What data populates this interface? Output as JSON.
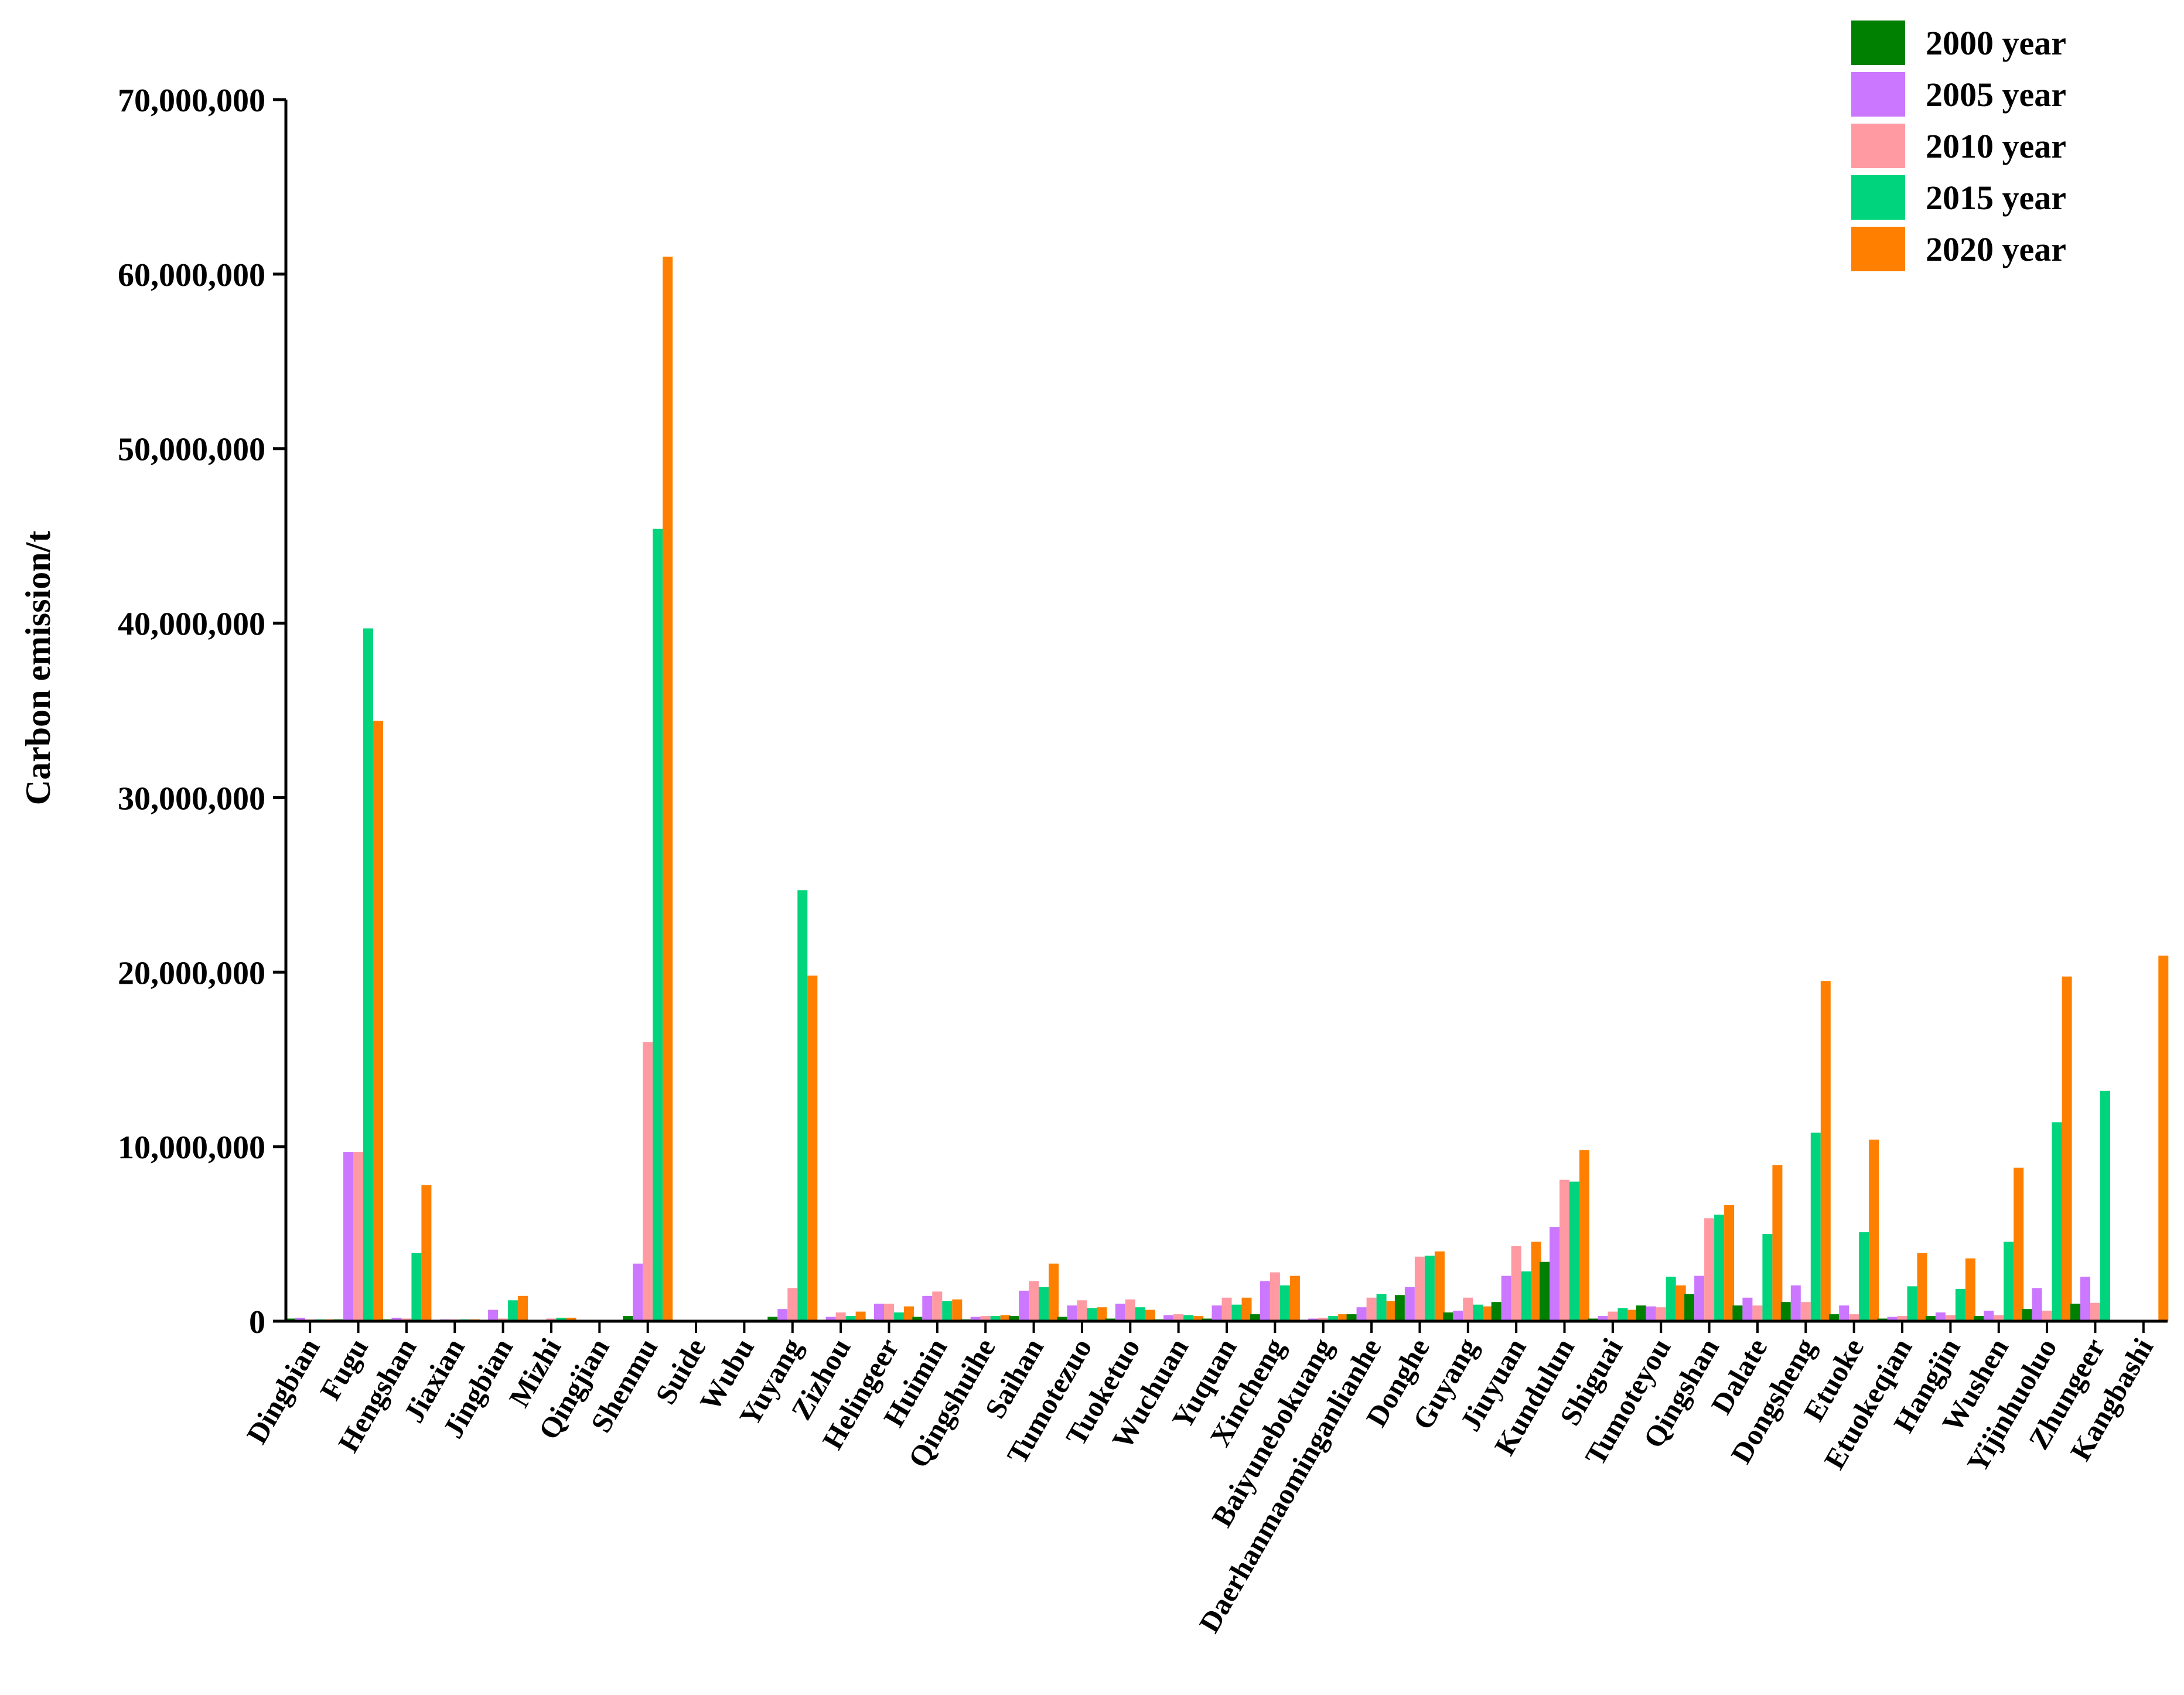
{
  "chart_data": {
    "type": "bar",
    "title": "",
    "xlabel": "",
    "ylabel": "Carbon emission/t",
    "ylim": [
      0,
      70000000
    ],
    "yticks": [
      0,
      10000000,
      20000000,
      30000000,
      40000000,
      50000000,
      60000000,
      70000000
    ],
    "ytick_labels": [
      "0",
      "10,000,000",
      "20,000,000",
      "30,000,000",
      "40,000,000",
      "50,000,000",
      "60,000,000",
      "70,000,000"
    ],
    "grid": false,
    "legend_position": "top-right",
    "categories": [
      "Dingbian",
      "Fugu",
      "Hengshan",
      "Jiaxian",
      "Jingbian",
      "Mizhi",
      "Qingjian",
      "Shenmu",
      "Suide",
      "Wubu",
      "Yuyang",
      "Zizhou",
      "Helingeer",
      "Huimin",
      "Qingshuihe",
      "Saihan",
      "Tumotezuo",
      "Tuoketuo",
      "Wuchuan",
      "Yuquan",
      "Xincheng",
      "Baiyunebokuang",
      "Daerhanmaominganlianhe",
      "Donghe",
      "Guyang",
      "Jiuyuan",
      "Kundulun",
      "Shiguai",
      "Tumoteyou",
      "Qingshan",
      "Dalate",
      "Dongsheng",
      "Etuoke",
      "Etuokeqian",
      "Hangjin",
      "Wushen",
      "Yijinhuoluo",
      "Zhungeer",
      "Kangbashi"
    ],
    "series": [
      {
        "name": "2000 year",
        "color": "#008000",
        "values": [
          150000,
          100000,
          100000,
          50000,
          80000,
          30000,
          30000,
          300000,
          10000,
          10000,
          250000,
          80000,
          100000,
          250000,
          100000,
          300000,
          250000,
          150000,
          100000,
          150000,
          400000,
          80000,
          400000,
          1500000,
          500000,
          1100000,
          3400000,
          150000,
          900000,
          1550000,
          900000,
          1100000,
          400000,
          150000,
          300000,
          300000,
          700000,
          1000000,
          0
        ]
      },
      {
        "name": "2005 year",
        "color": "#CC77FF",
        "values": [
          200000,
          9700000,
          200000,
          100000,
          650000,
          80000,
          30000,
          3300000,
          10000,
          10000,
          700000,
          250000,
          1000000,
          1450000,
          250000,
          1750000,
          900000,
          1000000,
          350000,
          900000,
          2300000,
          150000,
          800000,
          1950000,
          600000,
          2600000,
          5400000,
          300000,
          850000,
          2600000,
          1350000,
          2050000,
          900000,
          250000,
          500000,
          600000,
          1900000,
          2550000,
          0
        ]
      },
      {
        "name": "2010 year",
        "color": "#FF9AA2",
        "values": [
          100000,
          9700000,
          150000,
          100000,
          150000,
          150000,
          80000,
          16000000,
          10000,
          10000,
          1900000,
          500000,
          1000000,
          1700000,
          300000,
          2300000,
          1200000,
          1250000,
          400000,
          1350000,
          2800000,
          200000,
          1350000,
          3700000,
          1350000,
          4300000,
          8100000,
          550000,
          800000,
          5900000,
          900000,
          1100000,
          400000,
          300000,
          350000,
          350000,
          600000,
          1050000,
          0
        ]
      },
      {
        "name": "2015 year",
        "color": "#00D47C",
        "values": [
          100000,
          39700000,
          3900000,
          100000,
          1200000,
          200000,
          80000,
          45400000,
          10000,
          10000,
          24700000,
          300000,
          500000,
          1150000,
          300000,
          1950000,
          750000,
          800000,
          350000,
          950000,
          2050000,
          300000,
          1550000,
          3750000,
          950000,
          2850000,
          8000000,
          750000,
          2550000,
          6100000,
          5000000,
          10800000,
          5100000,
          2000000,
          1850000,
          4550000,
          11400000,
          13200000,
          0
        ]
      },
      {
        "name": "2020 year",
        "color": "#FF8000",
        "values": [
          100000,
          34400000,
          7800000,
          100000,
          1450000,
          200000,
          80000,
          61000000,
          10000,
          10000,
          19800000,
          550000,
          850000,
          1250000,
          350000,
          3300000,
          800000,
          650000,
          300000,
          1350000,
          2600000,
          400000,
          1150000,
          4000000,
          850000,
          4550000,
          9800000,
          650000,
          2050000,
          6650000,
          8950000,
          19500000,
          10400000,
          3900000,
          3600000,
          8800000,
          19750000,
          0,
          20950000
        ]
      }
    ]
  }
}
